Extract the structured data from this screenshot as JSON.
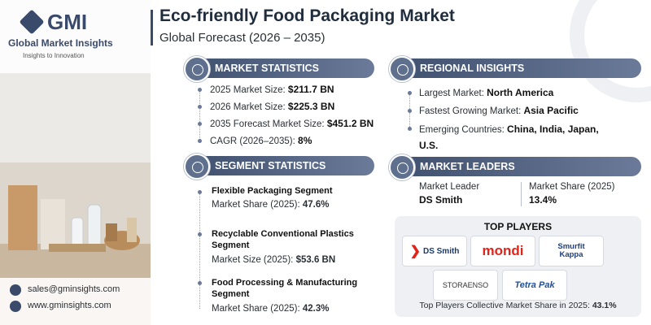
{
  "logo": {
    "mark": "GMI",
    "name": "Global Market Insights",
    "tagline": "Insights to Innovation"
  },
  "header": {
    "title": "Eco-friendly Food Packaging Market",
    "subtitle": "Global Forecast (2026 – 2035)"
  },
  "market_statistics": {
    "heading": "MARKET STATISTICS",
    "items": [
      {
        "label": "2025 Market Size:",
        "value": "$211.7 BN"
      },
      {
        "label": "2026 Market Size:",
        "value": "$225.3 BN"
      },
      {
        "label": "2035 Forecast Market Size:",
        "value": "$451.2 BN"
      },
      {
        "label": "CAGR (2026–2035):",
        "value": "8%"
      }
    ]
  },
  "regional_insights": {
    "heading": "REGIONAL INSIGHTS",
    "items": [
      {
        "label": "Largest Market:",
        "value": "North America"
      },
      {
        "label": "Fastest Growing Market:",
        "value": "Asia Pacific"
      },
      {
        "label": "Emerging Countries:",
        "value": "China, India, Japan, U.S."
      }
    ]
  },
  "segment_statistics": {
    "heading": "SEGMENT STATISTICS",
    "items": [
      {
        "name": "Flexible Packaging Segment",
        "metric": "Market Share (2025):",
        "value": "47.6%"
      },
      {
        "name": "Recyclable Conventional Plastics Segment",
        "metric": "Market Size (2025):",
        "value": "$53.6 BN"
      },
      {
        "name": "Food Processing & Manufacturing Segment",
        "metric": "Market Share (2025):",
        "value": "42.3%"
      }
    ]
  },
  "market_leaders": {
    "heading": "MARKET LEADERS",
    "leader_label": "Market Leader",
    "leader": "DS Smith",
    "share_label": "Market Share (2025)",
    "share": "13.4%"
  },
  "top_players": {
    "heading": "TOP PLAYERS",
    "logos": [
      "DS Smith",
      "mondi",
      "Smurfit Kappa",
      "STORAENSO",
      "Tetra Pak"
    ],
    "footer_label": "Top Players Collective Market Share in 2025:",
    "footer_value": "43.1%"
  },
  "contacts": {
    "email": "sales@gminsights.com",
    "website": "www.gminsights.com"
  }
}
